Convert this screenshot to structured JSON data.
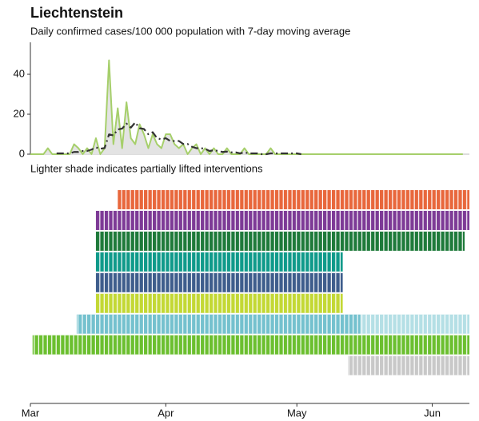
{
  "chart_data": [
    {
      "type": "line",
      "title": "Liechtenstein",
      "subtitle": "Daily confirmed cases/100 000 population with 7-day moving average",
      "x": [
        0,
        1,
        2,
        3,
        4,
        5,
        6,
        7,
        8,
        9,
        10,
        11,
        12,
        13,
        14,
        15,
        16,
        17,
        18,
        19,
        20,
        21,
        22,
        23,
        24,
        25,
        26,
        27,
        28,
        29,
        30,
        31,
        32,
        33,
        34,
        35,
        36,
        37,
        38,
        39,
        40,
        41,
        42,
        43,
        44,
        45,
        46,
        47,
        48,
        49,
        50,
        51,
        52,
        53,
        54,
        55,
        56,
        57,
        58,
        59,
        60,
        61,
        62,
        63,
        64,
        65,
        66,
        67,
        68,
        69,
        70,
        71,
        72,
        73,
        74,
        75,
        76,
        77,
        78,
        79,
        80,
        81,
        82,
        83,
        84,
        85,
        86,
        87,
        88,
        89,
        90,
        91,
        92,
        93,
        94,
        95,
        96,
        97,
        98,
        99
      ],
      "series": [
        {
          "color": "#a6cf6b",
          "fill": "#e3e3e3",
          "values": [
            0,
            0,
            0,
            0,
            3,
            0,
            0,
            0,
            0,
            0,
            5,
            3,
            0,
            3,
            0,
            8,
            0,
            3,
            47,
            5,
            23,
            3,
            26,
            8,
            5,
            15,
            10,
            3,
            10,
            5,
            3,
            10,
            10,
            5,
            3,
            5,
            0,
            3,
            5,
            0,
            3,
            0,
            3,
            0,
            0,
            3,
            0,
            0,
            0,
            3,
            0,
            0,
            0,
            0,
            0,
            3,
            0,
            0,
            0,
            0,
            0,
            0,
            0,
            0,
            0,
            0,
            0,
            0,
            0,
            0,
            0,
            0,
            0,
            0,
            0,
            0,
            0,
            0,
            0,
            0,
            0,
            0,
            0,
            0,
            0,
            0,
            0,
            0,
            0,
            0,
            0,
            0,
            0,
            0,
            0,
            0,
            0,
            0,
            0,
            0
          ]
        },
        {
          "color": "#333333",
          "dashed": true,
          "values": [
            null,
            null,
            null,
            null,
            null,
            null,
            0.4,
            0.4,
            0.4,
            0.4,
            1.1,
            1.1,
            1.6,
            1.6,
            2.3,
            3.4,
            2.7,
            3.1,
            9.9,
            9.4,
            12.4,
            12.8,
            15.3,
            13.3,
            15.9,
            13.0,
            12.6,
            10.0,
            11.0,
            8.0,
            7.4,
            8.0,
            6.6,
            6.6,
            6.6,
            5.1,
            5.1,
            3.7,
            3.0,
            3.0,
            2.7,
            1.6,
            2.0,
            1.6,
            1.1,
            1.3,
            0.9,
            0.9,
            0.4,
            0.9,
            0.4,
            0.4,
            0.4,
            0,
            0,
            0.4,
            0.4,
            0.4,
            0.4,
            0.4,
            0.4,
            0.4,
            0,
            null,
            null,
            null,
            null,
            null,
            null,
            null,
            null,
            null,
            null,
            null,
            null,
            null,
            null,
            null,
            null,
            null,
            null,
            null,
            null,
            null,
            null,
            null,
            null,
            null,
            null,
            null,
            null,
            null,
            null,
            null,
            null,
            null,
            null,
            null,
            null,
            null
          ]
        }
      ],
      "xlim": [
        0,
        100.5
      ],
      "ylim": [
        0,
        56
      ],
      "yticks": [
        0,
        20,
        40
      ]
    },
    {
      "type": "timeline",
      "subtitle": "Lighter shade indicates partially lifted interventions",
      "rows": [
        {
          "color": "#e8673c",
          "start": 20,
          "end": 100.5
        },
        {
          "color": "#7d3a96",
          "start": 15,
          "end": 100.5
        },
        {
          "color": "#1e7a3a",
          "start": 15,
          "end": 99.4
        },
        {
          "color": "#0f9a8a",
          "start": 15,
          "end": 71.5
        },
        {
          "color": "#3e5d8c",
          "start": 15,
          "end": 71.5
        },
        {
          "color": "#c3d834",
          "start": 15,
          "end": 71.5
        },
        {
          "color": "#74c1ce",
          "start": 10.6,
          "lifted": 75.5,
          "lifted_color": "#b4dfe5",
          "end": 100.5
        },
        {
          "color": "#6bbf2f",
          "start": 0.5,
          "end": 100.5
        },
        {
          "color": "#c8c8c8",
          "start": 72.7,
          "end": 100.5
        }
      ],
      "xlim": [
        0,
        100.5
      ],
      "xticks": [
        {
          "value": 0,
          "label": "Mar"
        },
        {
          "value": 31,
          "label": "Apr"
        },
        {
          "value": 61,
          "label": "May"
        },
        {
          "value": 92,
          "label": "Jun"
        }
      ]
    }
  ]
}
